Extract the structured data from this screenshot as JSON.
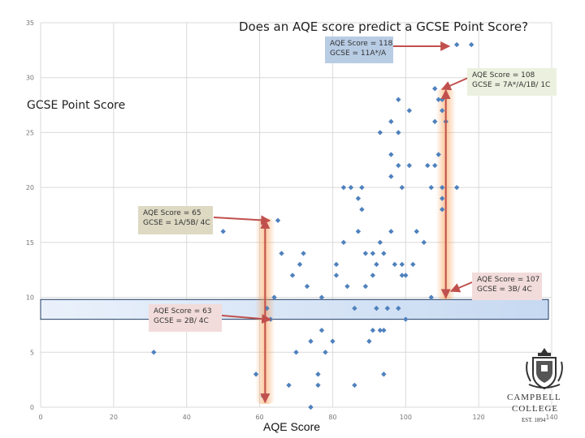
{
  "chart_data": {
    "type": "scatter",
    "title": "Does an AQE score predict a GCSE Point Score?",
    "ylabel": "GCSE Point Score",
    "xlabel": "AQE Score",
    "xlim": [
      0,
      140
    ],
    "ylim": [
      0,
      35
    ],
    "xticks": [
      0,
      20,
      40,
      60,
      80,
      100,
      120,
      140
    ],
    "yticks": [
      0,
      5,
      10,
      15,
      20,
      25,
      30,
      35
    ],
    "grid": true,
    "marker_color": "#4f81bd",
    "band": {
      "y_from": 8,
      "y_to": 9.8,
      "color": "#c6d9f1"
    },
    "points": [
      {
        "x": 31,
        "y": 5
      },
      {
        "x": 50,
        "y": 16
      },
      {
        "x": 59,
        "y": 3
      },
      {
        "x": 61,
        "y": 1
      },
      {
        "x": 62,
        "y": 9
      },
      {
        "x": 63,
        "y": 8
      },
      {
        "x": 64,
        "y": 10
      },
      {
        "x": 65,
        "y": 17
      },
      {
        "x": 66,
        "y": 14
      },
      {
        "x": 68,
        "y": 2
      },
      {
        "x": 69,
        "y": 12
      },
      {
        "x": 70,
        "y": 5
      },
      {
        "x": 71,
        "y": 13
      },
      {
        "x": 72,
        "y": 14
      },
      {
        "x": 73,
        "y": 11
      },
      {
        "x": 74,
        "y": 0
      },
      {
        "x": 74,
        "y": 6
      },
      {
        "x": 76,
        "y": 2
      },
      {
        "x": 76,
        "y": 3
      },
      {
        "x": 77,
        "y": 7
      },
      {
        "x": 77,
        "y": 10
      },
      {
        "x": 78,
        "y": 5
      },
      {
        "x": 80,
        "y": 6
      },
      {
        "x": 81,
        "y": 13
      },
      {
        "x": 81,
        "y": 12
      },
      {
        "x": 83,
        "y": 20
      },
      {
        "x": 83,
        "y": 15
      },
      {
        "x": 84,
        "y": 11
      },
      {
        "x": 85,
        "y": 20
      },
      {
        "x": 86,
        "y": 2
      },
      {
        "x": 86,
        "y": 9
      },
      {
        "x": 87,
        "y": 19
      },
      {
        "x": 87,
        "y": 16
      },
      {
        "x": 88,
        "y": 20
      },
      {
        "x": 88,
        "y": 18
      },
      {
        "x": 89,
        "y": 14
      },
      {
        "x": 89,
        "y": 11
      },
      {
        "x": 90,
        "y": 6
      },
      {
        "x": 91,
        "y": 12
      },
      {
        "x": 91,
        "y": 7
      },
      {
        "x": 91,
        "y": 14
      },
      {
        "x": 92,
        "y": 9
      },
      {
        "x": 92,
        "y": 13
      },
      {
        "x": 93,
        "y": 25
      },
      {
        "x": 93,
        "y": 15
      },
      {
        "x": 93,
        "y": 7
      },
      {
        "x": 94,
        "y": 7
      },
      {
        "x": 94,
        "y": 3
      },
      {
        "x": 94,
        "y": 14
      },
      {
        "x": 95,
        "y": 9
      },
      {
        "x": 96,
        "y": 26
      },
      {
        "x": 96,
        "y": 23
      },
      {
        "x": 96,
        "y": 21
      },
      {
        "x": 96,
        "y": 16
      },
      {
        "x": 97,
        "y": 13
      },
      {
        "x": 98,
        "y": 28
      },
      {
        "x": 98,
        "y": 25
      },
      {
        "x": 98,
        "y": 22
      },
      {
        "x": 98,
        "y": 9
      },
      {
        "x": 99,
        "y": 20
      },
      {
        "x": 99,
        "y": 13
      },
      {
        "x": 99,
        "y": 12
      },
      {
        "x": 100,
        "y": 12
      },
      {
        "x": 100,
        "y": 8
      },
      {
        "x": 101,
        "y": 27
      },
      {
        "x": 101,
        "y": 22
      },
      {
        "x": 102,
        "y": 13
      },
      {
        "x": 103,
        "y": 16
      },
      {
        "x": 105,
        "y": 15
      },
      {
        "x": 106,
        "y": 22
      },
      {
        "x": 107,
        "y": 10
      },
      {
        "x": 107,
        "y": 20
      },
      {
        "x": 108,
        "y": 29
      },
      {
        "x": 108,
        "y": 26
      },
      {
        "x": 108,
        "y": 22
      },
      {
        "x": 109,
        "y": 23
      },
      {
        "x": 109,
        "y": 28
      },
      {
        "x": 110,
        "y": 27
      },
      {
        "x": 110,
        "y": 20
      },
      {
        "x": 110,
        "y": 19
      },
      {
        "x": 110,
        "y": 18
      },
      {
        "x": 110,
        "y": 28
      },
      {
        "x": 111,
        "y": 26
      },
      {
        "x": 114,
        "y": 20
      },
      {
        "x": 114,
        "y": 33
      },
      {
        "x": 118,
        "y": 33
      }
    ]
  },
  "callouts": {
    "a118": {
      "line1": "AQE Score = 118",
      "line2": "GCSE = 11A*/A",
      "color": "#b8cce4"
    },
    "a108": {
      "line1": "AQE Score = 108",
      "line2": "GCSE = 7A*/A/1B/ 1C",
      "color": "#ebf1de"
    },
    "a65": {
      "line1": "AQE Score = 65",
      "line2": "GCSE = 1A/5B/ 4C",
      "color": "#ddd9c3"
    },
    "a107": {
      "line1": "AQE Score = 107",
      "line2": "GCSE = 3B/ 4C",
      "color": "#f2dcdb"
    },
    "a63": {
      "line1": "AQE Score = 63",
      "line2": "GCSE = 2B/ 4C",
      "color": "#f2dcdb"
    }
  },
  "logo": {
    "line1": "CAMPBELL",
    "line2": "COLLEGE",
    "est": "EST. 1894",
    "icon": "crest-icon"
  },
  "accent": {
    "arrow": "#c0504d",
    "glow": "#f79646"
  }
}
